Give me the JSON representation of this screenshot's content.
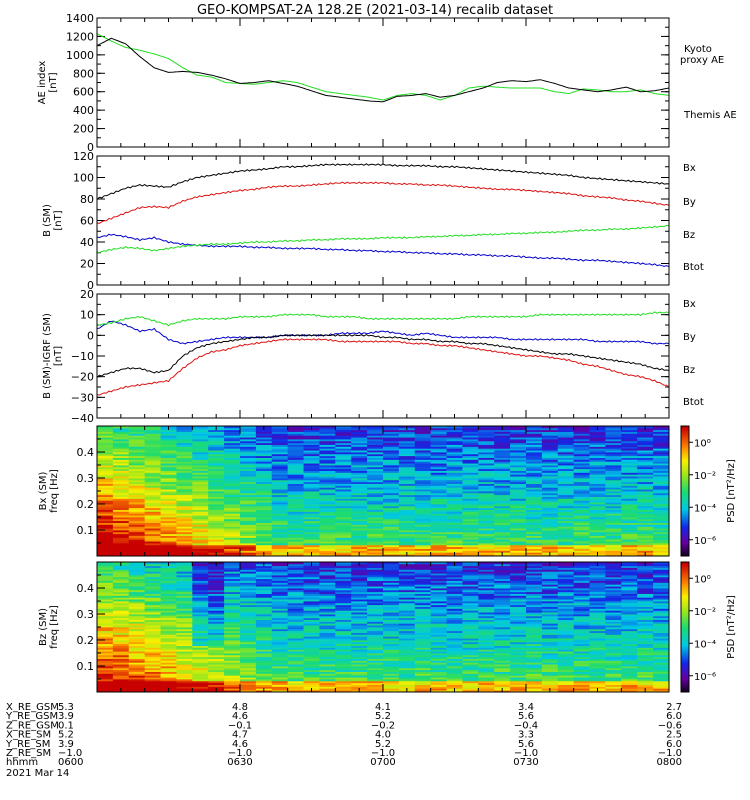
{
  "title": "GEO-KOMPSAT-2A 128.2E (2021-03-14) recalib dataset",
  "colors": {
    "black": "#000000",
    "green": "#22dd22",
    "red": "#dd1111",
    "blue": "#0000cc"
  },
  "chart_data": [
    {
      "type": "line",
      "panel": "ae",
      "ylabel": "AE index [nT]",
      "ylim": [
        0,
        1400
      ],
      "yticks": [
        0,
        200,
        400,
        600,
        800,
        1000,
        1200,
        1400
      ],
      "time_minutes": [
        0,
        3,
        6,
        9,
        12,
        15,
        18,
        21,
        24,
        27,
        30,
        33,
        36,
        39,
        42,
        45,
        48,
        51,
        54,
        57,
        60,
        63,
        66,
        69,
        72,
        75,
        78,
        81,
        84,
        87,
        90,
        93,
        96,
        99,
        102,
        105,
        108,
        111,
        114,
        117,
        120
      ],
      "series": [
        {
          "name": "Kyoto proxy AE",
          "color": "green",
          "values": [
            1230,
            1150,
            1080,
            1050,
            1010,
            960,
            860,
            780,
            760,
            700,
            690,
            680,
            700,
            720,
            700,
            650,
            600,
            580,
            560,
            540,
            510,
            560,
            580,
            560,
            510,
            560,
            640,
            660,
            650,
            640,
            640,
            640,
            600,
            580,
            630,
            620,
            600,
            600,
            620,
            580,
            560
          ]
        },
        {
          "name": "Themis AE",
          "color": "black",
          "values": [
            1100,
            1180,
            1120,
            980,
            860,
            810,
            820,
            810,
            780,
            740,
            690,
            700,
            720,
            690,
            660,
            610,
            560,
            540,
            520,
            500,
            490,
            550,
            560,
            580,
            540,
            560,
            600,
            640,
            700,
            720,
            710,
            730,
            690,
            640,
            620,
            600,
            620,
            650,
            600,
            610,
            640
          ]
        }
      ]
    },
    {
      "type": "line",
      "panel": "b",
      "ylabel": "B (SM) [nT]",
      "ylim": [
        0,
        120
      ],
      "yticks": [
        0,
        20,
        40,
        60,
        80,
        100,
        120
      ],
      "time_minutes": [
        0,
        3,
        6,
        9,
        12,
        15,
        18,
        21,
        24,
        27,
        30,
        33,
        36,
        39,
        42,
        45,
        48,
        51,
        54,
        57,
        60,
        63,
        66,
        69,
        72,
        75,
        78,
        81,
        84,
        87,
        90,
        93,
        96,
        99,
        102,
        105,
        108,
        111,
        114,
        117,
        120
      ],
      "series": [
        {
          "name": "Bx",
          "color": "blue",
          "values": [
            44,
            47,
            45,
            42,
            44,
            40,
            38,
            37,
            36,
            36,
            36,
            35,
            35,
            34,
            34,
            34,
            33,
            33,
            32,
            32,
            31,
            31,
            30,
            30,
            29,
            29,
            28,
            28,
            27,
            27,
            26,
            25,
            25,
            24,
            23,
            23,
            22,
            21,
            20,
            19,
            17
          ]
        },
        {
          "name": "By",
          "color": "green",
          "values": [
            30,
            33,
            35,
            34,
            32,
            34,
            36,
            37,
            38,
            38,
            39,
            40,
            40,
            41,
            41,
            42,
            42,
            43,
            43,
            43,
            44,
            44,
            44,
            45,
            45,
            46,
            46,
            47,
            47,
            48,
            48,
            49,
            49,
            50,
            51,
            51,
            52,
            52,
            53,
            54,
            55
          ]
        },
        {
          "name": "Bz",
          "color": "red",
          "values": [
            57,
            62,
            67,
            72,
            73,
            72,
            78,
            82,
            84,
            86,
            88,
            89,
            91,
            92,
            92,
            93,
            94,
            95,
            95,
            95,
            95,
            94,
            94,
            93,
            93,
            92,
            91,
            90,
            89,
            89,
            88,
            87,
            86,
            85,
            83,
            82,
            81,
            79,
            78,
            76,
            74
          ]
        },
        {
          "name": "Btot",
          "color": "black",
          "values": [
            80,
            85,
            90,
            93,
            92,
            91,
            96,
            100,
            102,
            104,
            106,
            107,
            108,
            110,
            110,
            111,
            112,
            112,
            112,
            112,
            112,
            111,
            111,
            111,
            110,
            110,
            109,
            108,
            107,
            106,
            105,
            104,
            103,
            102,
            100,
            99,
            98,
            97,
            96,
            95,
            94
          ]
        }
      ]
    },
    {
      "type": "line",
      "panel": "db",
      "ylabel": "B (SM)-IGRF (SM) [nT]",
      "ylim": [
        -40,
        20
      ],
      "yticks": [
        -40,
        -30,
        -20,
        -10,
        0,
        10,
        20
      ],
      "time_minutes": [
        0,
        3,
        6,
        9,
        12,
        15,
        18,
        21,
        24,
        27,
        30,
        33,
        36,
        39,
        42,
        45,
        48,
        51,
        54,
        57,
        60,
        63,
        66,
        69,
        72,
        75,
        78,
        81,
        84,
        87,
        90,
        93,
        96,
        99,
        102,
        105,
        108,
        111,
        114,
        117,
        120
      ],
      "series": [
        {
          "name": "Bx",
          "color": "blue",
          "values": [
            3,
            7,
            5,
            2,
            3,
            -2,
            -4,
            -3,
            -2,
            -1,
            -1,
            -1,
            -1,
            0,
            0,
            0,
            0,
            1,
            1,
            1,
            2,
            1,
            0,
            1,
            0,
            -1,
            -1,
            -1,
            -1,
            -2,
            -2,
            -2,
            -2,
            -2,
            -2,
            -3,
            -3,
            -3,
            -3,
            -4,
            -4
          ]
        },
        {
          "name": "By",
          "color": "green",
          "values": [
            5,
            6,
            8,
            9,
            7,
            5,
            7,
            8,
            8,
            8,
            9,
            9,
            9,
            10,
            10,
            10,
            9,
            9,
            9,
            8,
            8,
            8,
            8,
            8,
            8,
            8,
            9,
            9,
            9,
            9,
            9,
            10,
            10,
            10,
            10,
            10,
            10,
            10,
            10,
            11,
            11
          ]
        },
        {
          "name": "Bz",
          "color": "red",
          "values": [
            -29,
            -27,
            -25,
            -24,
            -23,
            -22,
            -16,
            -11,
            -8,
            -7,
            -5,
            -4,
            -3,
            -2,
            -2,
            -2,
            -2,
            -3,
            -3,
            -3,
            -3,
            -3,
            -4,
            -4,
            -5,
            -5,
            -6,
            -7,
            -8,
            -9,
            -10,
            -10,
            -11,
            -12,
            -14,
            -15,
            -17,
            -19,
            -20,
            -22,
            -25
          ]
        },
        {
          "name": "Btot",
          "color": "black",
          "values": [
            -20,
            -18,
            -16,
            -16,
            -18,
            -17,
            -10,
            -6,
            -4,
            -3,
            -2,
            -1,
            -1,
            0,
            0,
            0,
            0,
            0,
            0,
            0,
            -1,
            -1,
            -2,
            -2,
            -3,
            -3,
            -4,
            -4,
            -5,
            -6,
            -7,
            -8,
            -9,
            -9,
            -10,
            -11,
            -12,
            -13,
            -14,
            -16,
            -17
          ]
        }
      ]
    },
    {
      "type": "heatmap",
      "panel": "spec_bx",
      "ylabel": "Bx (SM) freq [Hz]",
      "ylim": [
        0,
        0.5
      ],
      "yticks": [
        0.1,
        0.2,
        0.3,
        0.4
      ],
      "colorbar_label": "PSD [nT²/Hz]",
      "colorbar_ticks": [
        "10⁰",
        "10⁻²",
        "10⁻⁴",
        "10⁻⁶"
      ],
      "log10_psd_range": [
        -7,
        1
      ]
    },
    {
      "type": "heatmap",
      "panel": "spec_bz",
      "ylabel": "Bz (SM) freq [Hz]",
      "ylim": [
        0,
        0.5
      ],
      "yticks": [
        0.1,
        0.2,
        0.3,
        0.4
      ],
      "colorbar_label": "PSD [nT²/Hz]",
      "colorbar_ticks": [
        "10⁰",
        "10⁻²",
        "10⁻⁴",
        "10⁻⁶"
      ],
      "log10_psd_range": [
        -7,
        1
      ]
    }
  ],
  "legends": {
    "ae": [
      {
        "text": "Kyoto proxy AE",
        "color": "green"
      },
      {
        "text": "Themis AE",
        "color": "black"
      }
    ],
    "b": [
      {
        "text": "Bx",
        "color": "blue"
      },
      {
        "text": "By",
        "color": "green"
      },
      {
        "text": "Bz",
        "color": "red"
      },
      {
        "text": "Btot",
        "color": "black"
      }
    ],
    "db": [
      {
        "text": "Bx",
        "color": "blue"
      },
      {
        "text": "By",
        "color": "green"
      },
      {
        "text": "Bz",
        "color": "red"
      },
      {
        "text": "Btot",
        "color": "black"
      }
    ]
  },
  "ephemeris": {
    "row_labels": [
      "X_RE_GSM",
      "Y_RE_GSM",
      "Z_RE_GSM",
      "X_RE_SM",
      "Y_RE_SM",
      "Z_RE_SM",
      "hhmm"
    ],
    "columns": [
      [
        "5.3",
        "3.9",
        "0.1",
        "5.2",
        "3.9",
        "-1.0",
        "0600"
      ],
      [
        "4.8",
        "4.6",
        "-0.1",
        "4.7",
        "4.6",
        "-1.0",
        "0630"
      ],
      [
        "4.1",
        "5.2",
        "-0.2",
        "4.0",
        "5.2",
        "-1.0",
        "0700"
      ],
      [
        "3.4",
        "5.6",
        "-0.4",
        "3.3",
        "5.6",
        "-1.0",
        "0730"
      ],
      [
        "2.7",
        "6.0",
        "-0.6",
        "2.5",
        "6.0",
        "-1.0",
        "0800"
      ]
    ],
    "date": "2021 Mar 14"
  }
}
